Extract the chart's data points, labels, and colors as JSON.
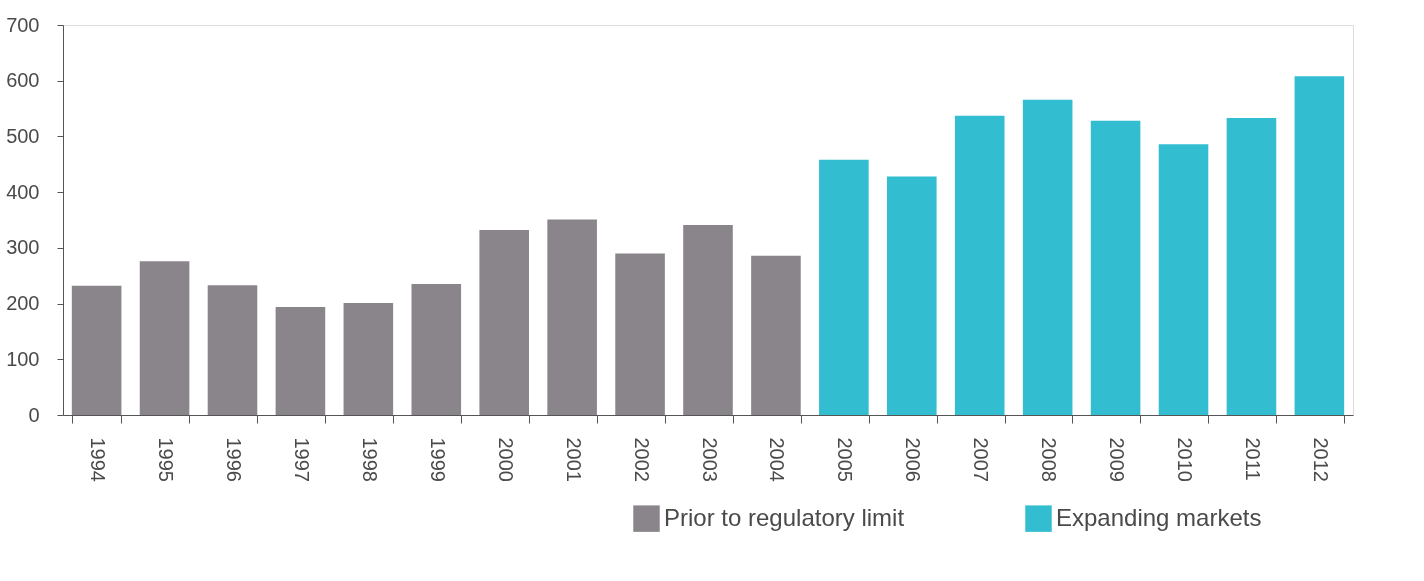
{
  "chart_data": {
    "type": "bar",
    "categories": [
      "1994",
      "1995",
      "1996",
      "1997",
      "1998",
      "1999",
      "2000",
      "2001",
      "2002",
      "2003",
      "2004",
      "2005",
      "2006",
      "2007",
      "2008",
      "2009",
      "2010",
      "2011",
      "2012"
    ],
    "series": [
      {
        "name": "Prior to regulatory limit",
        "color": "#8a858b",
        "values": [
          232,
          276,
          233,
          194,
          201,
          235,
          332,
          351,
          290,
          341,
          286,
          null,
          null,
          null,
          null,
          null,
          null,
          null,
          null
        ]
      },
      {
        "name": "Expanding markets",
        "color": "#32bdd0",
        "values": [
          null,
          null,
          null,
          null,
          null,
          null,
          null,
          null,
          null,
          null,
          null,
          458,
          428,
          537,
          566,
          528,
          486,
          533,
          608
        ]
      }
    ],
    "ylim": [
      0,
      700
    ],
    "yticks": [
      0,
      100,
      200,
      300,
      400,
      500,
      600,
      700
    ],
    "grid": false,
    "legend": "bottom right"
  }
}
